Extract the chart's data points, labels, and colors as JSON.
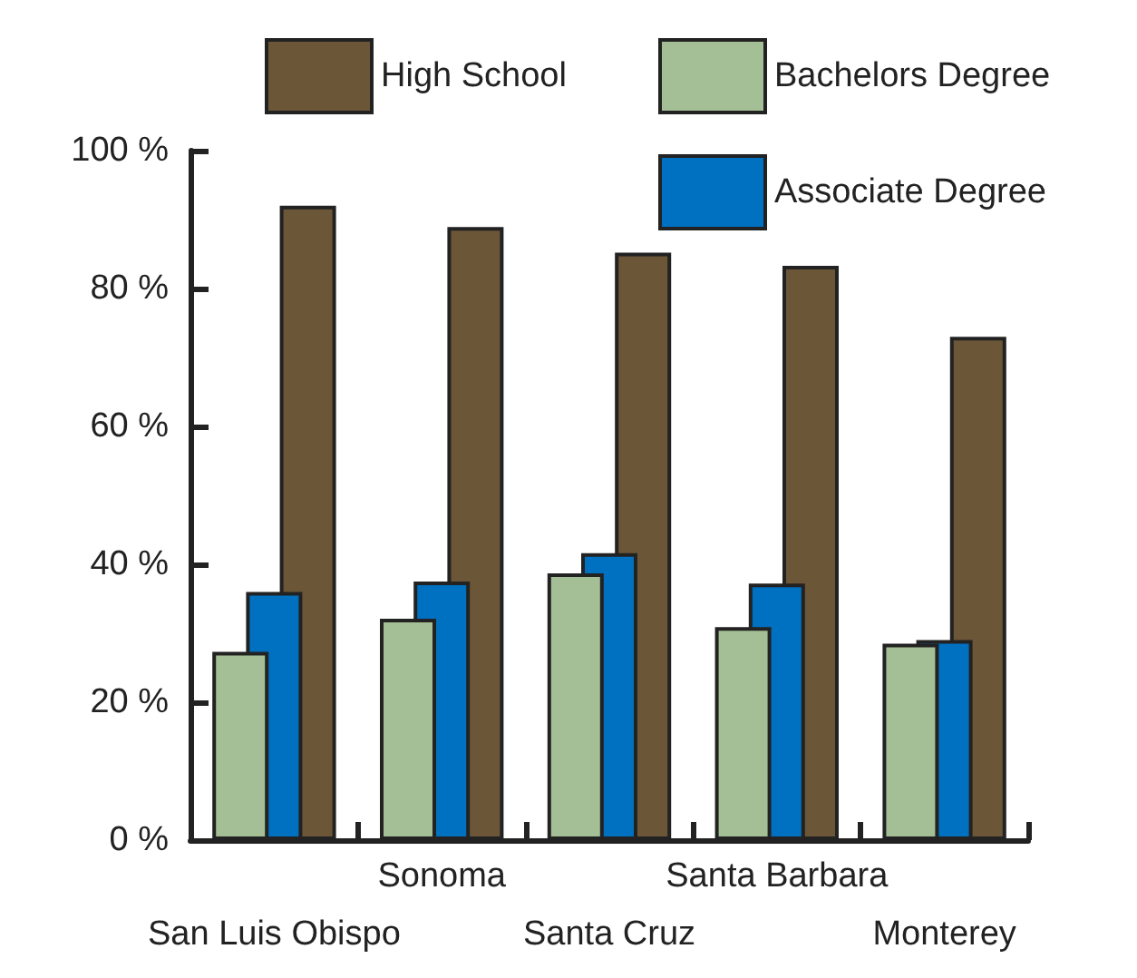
{
  "chart_data": {
    "type": "bar",
    "categories": [
      "San Luis Obispo",
      "Sonoma",
      "Santa Cruz",
      "Santa Barbara",
      "Monterey"
    ],
    "series": [
      {
        "name": "Bachelors Degree",
        "color": "#a4bf95",
        "values": [
          27.3,
          32.1,
          38.7,
          30.9,
          28.5
        ]
      },
      {
        "name": "Associate Degree",
        "color": "#0070c0",
        "values": [
          36,
          37.5,
          41.6,
          37.2,
          29
        ]
      },
      {
        "name": "High School",
        "color": "#6b5637",
        "values": [
          92,
          88.9,
          85.2,
          83.3,
          73
        ]
      }
    ],
    "ylim": [
      0,
      100
    ],
    "yticks": [
      {
        "value": 0,
        "label": "0 %"
      },
      {
        "value": 20,
        "label": "20 %"
      },
      {
        "value": 40,
        "label": "40 %"
      },
      {
        "value": 60,
        "label": "60 %"
      },
      {
        "value": 80,
        "label": "80 %"
      },
      {
        "value": 100,
        "label": "100 %"
      }
    ],
    "grid": false,
    "legend": "top"
  }
}
